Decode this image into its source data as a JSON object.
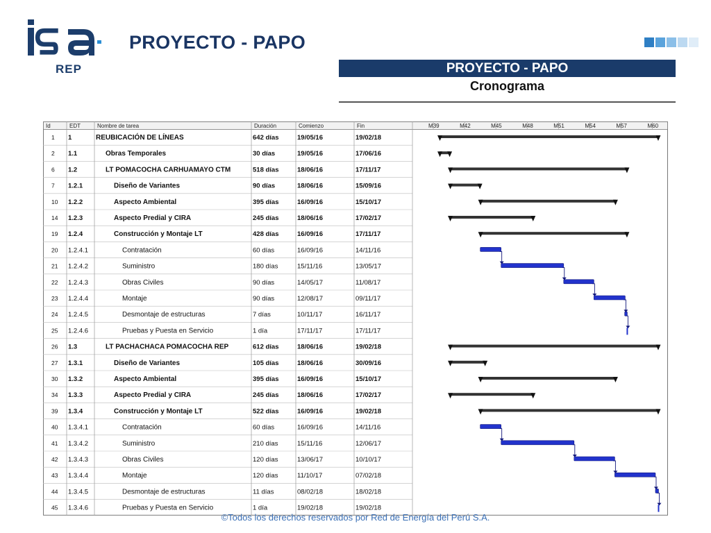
{
  "header": {
    "title": "PROYECTO - PAPO",
    "logo_text": "isa",
    "logo_sub": "REP",
    "banner_title": "PROYECTO - PAPO",
    "banner_subtitle": "Cronograma"
  },
  "colors": {
    "brand_blue": "#1a3b6a",
    "summary_bar": "#333333",
    "task_bar": "#2233cc",
    "footer_text": "#3a6fb5"
  },
  "chart_data": {
    "type": "table",
    "columns": [
      "Id",
      "EDT",
      "Nombre de tarea",
      "Duración",
      "Comienzo",
      "Fin"
    ],
    "timeline_labels": [
      "M39",
      "M42",
      "M45",
      "M48",
      "M51",
      "M54",
      "M57",
      "M60"
    ],
    "timeline_months": [
      39,
      42,
      45,
      48,
      51,
      54,
      57,
      60
    ],
    "timeline_range": [
      37.0,
      61.5
    ],
    "rows": [
      {
        "id": "1",
        "edt": "1",
        "name": "REUBICACIÓN DE LÍNEAS",
        "duration": "642 días",
        "start": "19/05/16",
        "finish": "19/02/18",
        "level": 0,
        "summary": true,
        "s": 39.6,
        "f": 60.6
      },
      {
        "id": "2",
        "edt": "1.1",
        "name": "Obras Temporales",
        "duration": "30 días",
        "start": "19/05/16",
        "finish": "17/06/16",
        "level": 1,
        "summary": true,
        "s": 39.6,
        "f": 40.6
      },
      {
        "id": "6",
        "edt": "1.2",
        "name": "LT POMACOCHA CARHUAMAYO CTM",
        "duration": "518 días",
        "start": "18/06/16",
        "finish": "17/11/17",
        "level": 1,
        "summary": true,
        "s": 40.6,
        "f": 57.6
      },
      {
        "id": "7",
        "edt": "1.2.1",
        "name": "Diseño de Variantes",
        "duration": "90 días",
        "start": "18/06/16",
        "finish": "15/09/16",
        "level": 2,
        "summary": true,
        "s": 40.6,
        "f": 43.5
      },
      {
        "id": "10",
        "edt": "1.2.2",
        "name": "Aspecto Ambiental",
        "duration": "395 días",
        "start": "16/09/16",
        "finish": "15/10/17",
        "level": 2,
        "summary": true,
        "s": 43.5,
        "f": 56.5
      },
      {
        "id": "14",
        "edt": "1.2.3",
        "name": "Aspecto Predial y CIRA",
        "duration": "245 días",
        "start": "18/06/16",
        "finish": "17/02/17",
        "level": 2,
        "summary": true,
        "s": 40.6,
        "f": 48.6
      },
      {
        "id": "19",
        "edt": "1.2.4",
        "name": "Construcción y Montaje LT",
        "duration": "428 días",
        "start": "16/09/16",
        "finish": "17/11/17",
        "level": 2,
        "summary": true,
        "s": 43.5,
        "f": 57.6
      },
      {
        "id": "20",
        "edt": "1.2.4.1",
        "name": "Contratación",
        "duration": "60 días",
        "start": "16/09/16",
        "finish": "14/11/16",
        "level": 3,
        "summary": false,
        "s": 43.5,
        "f": 45.5
      },
      {
        "id": "21",
        "edt": "1.2.4.2",
        "name": "Suministro",
        "duration": "180 días",
        "start": "15/11/16",
        "finish": "13/05/17",
        "level": 3,
        "summary": false,
        "s": 45.5,
        "f": 51.5
      },
      {
        "id": "22",
        "edt": "1.2.4.3",
        "name": "Obras Civiles",
        "duration": "90 días",
        "start": "14/05/17",
        "finish": "11/08/17",
        "level": 3,
        "summary": false,
        "s": 51.5,
        "f": 54.4
      },
      {
        "id": "23",
        "edt": "1.2.4.4",
        "name": "Montaje",
        "duration": "90 días",
        "start": "12/08/17",
        "finish": "09/11/17",
        "level": 3,
        "summary": false,
        "s": 54.4,
        "f": 57.4
      },
      {
        "id": "24",
        "edt": "1.2.4.5",
        "name": "Desmontaje de estructuras",
        "duration": "7 días",
        "start": "10/11/17",
        "finish": "16/11/17",
        "level": 3,
        "summary": false,
        "s": 57.35,
        "f": 57.6
      },
      {
        "id": "25",
        "edt": "1.2.4.6",
        "name": "Pruebas y Puesta en Servicio",
        "duration": "1 día",
        "start": "17/11/17",
        "finish": "17/11/17",
        "level": 3,
        "summary": false,
        "s": 57.6,
        "f": 57.6
      },
      {
        "id": "26",
        "edt": "1.3",
        "name": "LT PACHACHACA POMACOCHA REP",
        "duration": "612 días",
        "start": "18/06/16",
        "finish": "19/02/18",
        "level": 1,
        "summary": true,
        "s": 40.6,
        "f": 60.6
      },
      {
        "id": "27",
        "edt": "1.3.1",
        "name": "Diseño de Variantes",
        "duration": "105 días",
        "start": "18/06/16",
        "finish": "30/09/16",
        "level": 2,
        "summary": true,
        "s": 40.6,
        "f": 44.0
      },
      {
        "id": "30",
        "edt": "1.3.2",
        "name": "Aspecto Ambiental",
        "duration": "395 días",
        "start": "16/09/16",
        "finish": "15/10/17",
        "level": 2,
        "summary": true,
        "s": 43.5,
        "f": 56.5
      },
      {
        "id": "34",
        "edt": "1.3.3",
        "name": "Aspecto Predial y CIRA",
        "duration": "245 días",
        "start": "18/06/16",
        "finish": "17/02/17",
        "level": 2,
        "summary": true,
        "s": 40.6,
        "f": 48.6
      },
      {
        "id": "39",
        "edt": "1.3.4",
        "name": "Construcción y Montaje LT",
        "duration": "522 días",
        "start": "16/09/16",
        "finish": "19/02/18",
        "level": 2,
        "summary": true,
        "s": 43.5,
        "f": 60.6
      },
      {
        "id": "40",
        "edt": "1.3.4.1",
        "name": "Contratación",
        "duration": "60 días",
        "start": "16/09/16",
        "finish": "14/11/16",
        "level": 3,
        "summary": false,
        "s": 43.5,
        "f": 45.5
      },
      {
        "id": "41",
        "edt": "1.3.4.2",
        "name": "Suministro",
        "duration": "210 días",
        "start": "15/11/16",
        "finish": "12/06/17",
        "level": 3,
        "summary": false,
        "s": 45.5,
        "f": 52.5
      },
      {
        "id": "42",
        "edt": "1.3.4.3",
        "name": "Obras Civiles",
        "duration": "120 días",
        "start": "13/06/17",
        "finish": "10/10/17",
        "level": 3,
        "summary": false,
        "s": 52.5,
        "f": 56.4
      },
      {
        "id": "43",
        "edt": "1.3.4.4",
        "name": "Montaje",
        "duration": "120 días",
        "start": "11/10/17",
        "finish": "07/02/18",
        "level": 3,
        "summary": false,
        "s": 56.4,
        "f": 60.3
      },
      {
        "id": "44",
        "edt": "1.3.4.5",
        "name": "Desmontaje de estructuras",
        "duration": "11 días",
        "start": "08/02/18",
        "finish": "18/02/18",
        "level": 3,
        "summary": false,
        "s": 60.3,
        "f": 60.6
      },
      {
        "id": "45",
        "edt": "1.3.4.6",
        "name": "Pruebas y Puesta en Servicio",
        "duration": "1 día",
        "start": "19/02/18",
        "finish": "19/02/18",
        "level": 3,
        "summary": false,
        "s": 60.6,
        "f": 60.6
      }
    ]
  },
  "footer": {
    "copyright": "©Todos los derechos reservados por Red de Energía del Perú S.A."
  }
}
